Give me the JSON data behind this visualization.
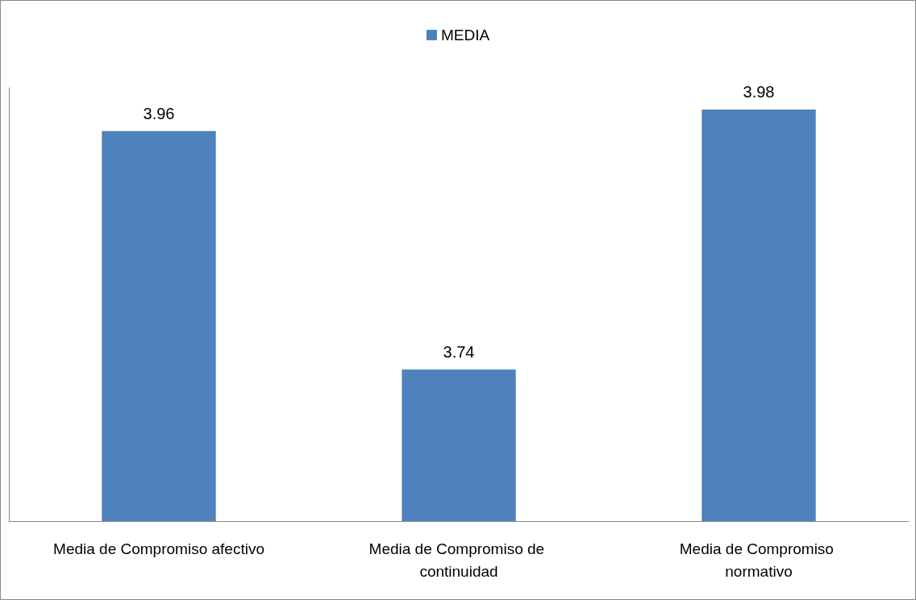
{
  "chart_data": {
    "type": "bar",
    "categories": [
      "Media de Compromiso afectivo",
      "Media de Compromiso de continuidad",
      "Media de Compromiso normativo"
    ],
    "series": [
      {
        "name": "MEDIA",
        "color": "#4f81bd",
        "values": [
          3.96,
          3.74,
          3.98
        ]
      }
    ],
    "ylim": [
      3.6,
      4.0
    ],
    "tick_labels": "x",
    "data_labels": true,
    "legend": "top",
    "grid": false
  }
}
